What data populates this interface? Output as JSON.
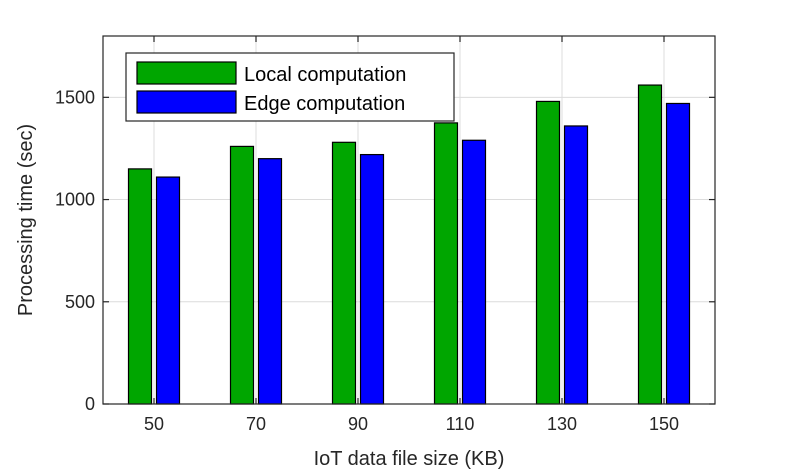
{
  "chart_data": {
    "type": "bar",
    "title": "",
    "xlabel": "IoT data file size (KB)",
    "ylabel": "Processing time (sec)",
    "categories": [
      "50",
      "70",
      "90",
      "110",
      "130",
      "150"
    ],
    "series": [
      {
        "name": "Local computation",
        "color": "#00a600",
        "values": [
          1150,
          1260,
          1280,
          1375,
          1480,
          1560
        ]
      },
      {
        "name": "Edge computation",
        "color": "#0000ff",
        "values": [
          1110,
          1200,
          1220,
          1290,
          1360,
          1470
        ]
      }
    ],
    "ylim": [
      0,
      1800
    ],
    "yticks": [
      0,
      500,
      1000,
      1500
    ],
    "grid": true,
    "legend_position": "top-left"
  }
}
